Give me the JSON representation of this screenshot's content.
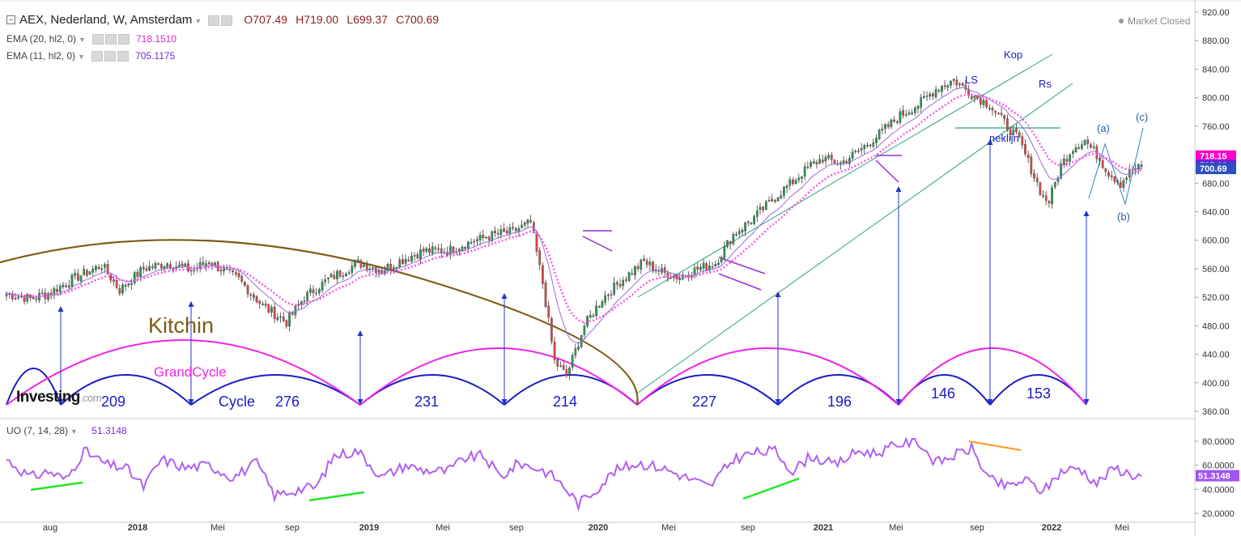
{
  "header": {
    "collapse_glyph": "−",
    "symbol": "AEX, Nederland, W, Amsterdam",
    "open": "O707.49",
    "high": "H719.00",
    "low": "L699.37",
    "close": "C700.69",
    "market_status": "Market Closed"
  },
  "indicators": {
    "ema20_label": "EMA (20, hl2, 0)",
    "ema20_value": "718.1510",
    "ema11_label": "EMA (11, hl2, 0)",
    "ema11_value": "705.1175",
    "uo_label": "UO (7, 14, 28)",
    "uo_value": "51.3148"
  },
  "logo": {
    "name": "Investing",
    "suffix": ".com"
  },
  "colors": {
    "up": "#2b9a55",
    "down": "#e04848",
    "ema20": "#ff55e0",
    "ema11": "#9a6ae0",
    "kitchin": "#7d5c14",
    "grandcycle": "#f023e8",
    "cycle": "#1a1ac8",
    "arrows": "#2233cc",
    "channel": "#2aa37a",
    "uo_line": "#b060f0",
    "div_green": "#22e622",
    "div_orange": "#ff9a1a"
  },
  "chart_data": [
    {
      "type": "candlestick",
      "panel": "price",
      "x_ticks": [
        "aug",
        "2018",
        "Mei",
        "sep",
        "2019",
        "Mei",
        "sep",
        "2020",
        "Mei",
        "sep",
        "2021",
        "Mei",
        "sep",
        "2022",
        "Mei"
      ],
      "y_ticks": [
        "920.00",
        "880.00",
        "840.00",
        "800.00",
        "760.00",
        "720.00",
        "680.00",
        "640.00",
        "600.00",
        "560.00",
        "520.00",
        "480.00",
        "440.00",
        "400.00",
        "360.00"
      ],
      "ylim": [
        355,
        925
      ],
      "price_tags": [
        {
          "text": "718.15",
          "value": 718.15,
          "color": "#ff00cc"
        },
        {
          "text": "705.12",
          "value": 705.12,
          "color": "#6a23d6"
        },
        {
          "text": "700.69",
          "value": 700.69,
          "color": "#2a50c0"
        }
      ],
      "anchors": [
        [
          0,
          525
        ],
        [
          8,
          518
        ],
        [
          14,
          525
        ],
        [
          22,
          545
        ],
        [
          32,
          565
        ],
        [
          38,
          530
        ],
        [
          46,
          560
        ],
        [
          54,
          568
        ],
        [
          62,
          558
        ],
        [
          68,
          570
        ],
        [
          78,
          545
        ],
        [
          86,
          508
        ],
        [
          94,
          485
        ],
        [
          100,
          520
        ],
        [
          108,
          545
        ],
        [
          118,
          568
        ],
        [
          126,
          558
        ],
        [
          134,
          575
        ],
        [
          140,
          585
        ],
        [
          148,
          585
        ],
        [
          156,
          598
        ],
        [
          164,
          608
        ],
        [
          170,
          612
        ],
        [
          176,
          625
        ],
        [
          180,
          540
        ],
        [
          184,
          430
        ],
        [
          188,
          410
        ],
        [
          194,
          480
        ],
        [
          200,
          518
        ],
        [
          206,
          542
        ],
        [
          214,
          570
        ],
        [
          220,
          555
        ],
        [
          226,
          548
        ],
        [
          232,
          560
        ],
        [
          238,
          568
        ],
        [
          244,
          608
        ],
        [
          250,
          628
        ],
        [
          258,
          660
        ],
        [
          266,
          690
        ],
        [
          270,
          705
        ],
        [
          274,
          715
        ],
        [
          280,
          708
        ],
        [
          286,
          725
        ],
        [
          292,
          745
        ],
        [
          300,
          775
        ],
        [
          306,
          790
        ],
        [
          312,
          812
        ],
        [
          318,
          825
        ],
        [
          324,
          805
        ],
        [
          330,
          790
        ],
        [
          336,
          760
        ],
        [
          340,
          740
        ],
        [
          344,
          700
        ],
        [
          348,
          660
        ],
        [
          350,
          655
        ],
        [
          354,
          705
        ],
        [
          358,
          730
        ],
        [
          362,
          740
        ],
        [
          366,
          720
        ],
        [
          370,
          695
        ],
        [
          374,
          680
        ],
        [
          378,
          700
        ],
        [
          381,
          701
        ]
      ],
      "x_range_weeks": [
        0,
        381
      ],
      "annotations": [
        "Kitchin",
        "GrandCycle",
        "Cycle",
        "209",
        "276",
        "231",
        "214",
        "227",
        "196",
        "146",
        "153",
        "LS",
        "Kop",
        "Rs",
        "neklijn",
        "(a)",
        "(b)",
        "(c)"
      ]
    },
    {
      "type": "line",
      "panel": "oscillator",
      "y_ticks": [
        "80.0000",
        "60.0000",
        "40.0000",
        "20.0000"
      ],
      "ylim": [
        15,
        88
      ],
      "last_value": "51.3148",
      "anchors": [
        [
          0,
          65
        ],
        [
          8,
          50
        ],
        [
          14,
          55
        ],
        [
          20,
          48
        ],
        [
          26,
          72
        ],
        [
          34,
          60
        ],
        [
          40,
          58
        ],
        [
          46,
          42
        ],
        [
          52,
          65
        ],
        [
          60,
          58
        ],
        [
          68,
          60
        ],
        [
          76,
          50
        ],
        [
          84,
          62
        ],
        [
          90,
          35
        ],
        [
          98,
          40
        ],
        [
          104,
          42
        ],
        [
          110,
          68
        ],
        [
          118,
          72
        ],
        [
          126,
          50
        ],
        [
          134,
          60
        ],
        [
          140,
          56
        ],
        [
          148,
          55
        ],
        [
          154,
          66
        ],
        [
          160,
          68
        ],
        [
          166,
          50
        ],
        [
          172,
          62
        ],
        [
          180,
          56
        ],
        [
          184,
          50
        ],
        [
          188,
          40
        ],
        [
          192,
          28
        ],
        [
          198,
          40
        ],
        [
          204,
          55
        ],
        [
          212,
          62
        ],
        [
          220,
          58
        ],
        [
          228,
          50
        ],
        [
          236,
          42
        ],
        [
          244,
          65
        ],
        [
          250,
          70
        ],
        [
          258,
          72
        ],
        [
          264,
          55
        ],
        [
          270,
          68
        ],
        [
          278,
          60
        ],
        [
          286,
          72
        ],
        [
          292,
          70
        ],
        [
          300,
          78
        ],
        [
          306,
          80
        ],
        [
          312,
          62
        ],
        [
          318,
          68
        ],
        [
          324,
          74
        ],
        [
          330,
          48
        ],
        [
          336,
          42
        ],
        [
          342,
          48
        ],
        [
          348,
          38
        ],
        [
          354,
          55
        ],
        [
          360,
          58
        ],
        [
          366,
          45
        ],
        [
          372,
          58
        ],
        [
          378,
          52
        ],
        [
          381,
          51
        ]
      ]
    }
  ]
}
